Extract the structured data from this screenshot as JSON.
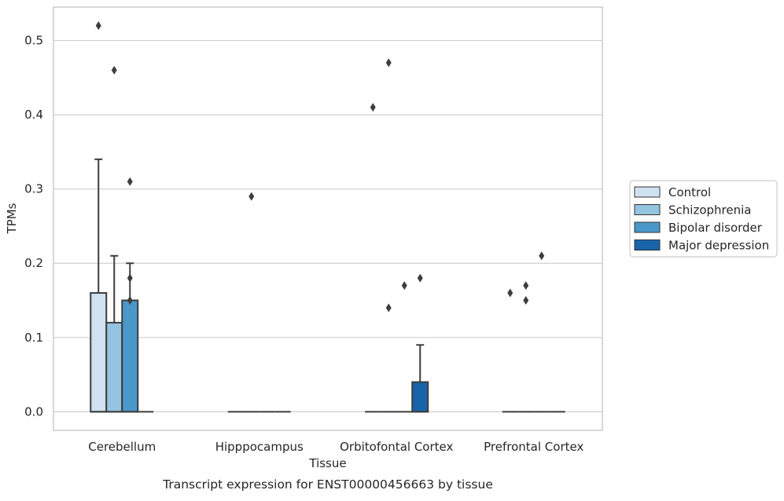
{
  "chart_data": {
    "type": "box",
    "title": "Transcript expression for ENST00000456663 by tissue",
    "xlabel": "Tissue",
    "ylabel": "TPMs",
    "ylim": [
      -0.025,
      0.545
    ],
    "yticks": [
      0.0,
      0.1,
      0.2,
      0.3,
      0.4,
      0.5
    ],
    "ytick_labels": [
      "0.0",
      "0.1",
      "0.2",
      "0.3",
      "0.4",
      "0.5"
    ],
    "grid": "horizontal",
    "legend_position": "right",
    "categories": [
      "Cerebellum",
      "Hipppocampus",
      "Orbitofontal Cortex",
      "Prefrontal Cortex"
    ],
    "series": [
      {
        "name": "Control",
        "color": "#d0e1f1",
        "boxes": [
          {
            "category": "Cerebellum",
            "q1": 0.0,
            "median": 0.0,
            "q3": 0.16,
            "whisker_low": 0.0,
            "whisker_high": 0.34,
            "outliers": [
              0.52
            ]
          },
          {
            "category": "Hipppocampus",
            "q1": 0.0,
            "median": 0.0,
            "q3": 0.0,
            "whisker_low": 0.0,
            "whisker_high": 0.0,
            "outliers": []
          },
          {
            "category": "Orbitofontal Cortex",
            "q1": 0.0,
            "median": 0.0,
            "q3": 0.0,
            "whisker_low": 0.0,
            "whisker_high": 0.0,
            "outliers": [
              0.41
            ]
          },
          {
            "category": "Prefrontal Cortex",
            "q1": 0.0,
            "median": 0.0,
            "q3": 0.0,
            "whisker_low": 0.0,
            "whisker_high": 0.0,
            "outliers": [
              0.16
            ]
          }
        ]
      },
      {
        "name": "Schizophrenia",
        "color": "#94c4df",
        "boxes": [
          {
            "category": "Cerebellum",
            "q1": 0.0,
            "median": 0.0,
            "q3": 0.12,
            "whisker_low": 0.0,
            "whisker_high": 0.21,
            "outliers": [
              0.46
            ]
          },
          {
            "category": "Hipppocampus",
            "q1": 0.0,
            "median": 0.0,
            "q3": 0.0,
            "whisker_low": 0.0,
            "whisker_high": 0.0,
            "outliers": [
              0.29
            ]
          },
          {
            "category": "Orbitofontal Cortex",
            "q1": 0.0,
            "median": 0.0,
            "q3": 0.0,
            "whisker_low": 0.0,
            "whisker_high": 0.0,
            "outliers": [
              0.47,
              0.14
            ]
          },
          {
            "category": "Prefrontal Cortex",
            "q1": 0.0,
            "median": 0.0,
            "q3": 0.0,
            "whisker_low": 0.0,
            "whisker_high": 0.0,
            "outliers": [
              0.17,
              0.15
            ]
          }
        ]
      },
      {
        "name": "Bipolar disorder",
        "color": "#4a98c9",
        "boxes": [
          {
            "category": "Cerebellum",
            "q1": 0.0,
            "median": 0.0,
            "q3": 0.15,
            "whisker_low": 0.0,
            "whisker_high": 0.2,
            "outliers": [
              0.31,
              0.18,
              0.15
            ]
          },
          {
            "category": "Hipppocampus",
            "q1": 0.0,
            "median": 0.0,
            "q3": 0.0,
            "whisker_low": 0.0,
            "whisker_high": 0.0,
            "outliers": []
          },
          {
            "category": "Orbitofontal Cortex",
            "q1": 0.0,
            "median": 0.0,
            "q3": 0.0,
            "whisker_low": 0.0,
            "whisker_high": 0.0,
            "outliers": [
              0.17
            ]
          },
          {
            "category": "Prefrontal Cortex",
            "q1": 0.0,
            "median": 0.0,
            "q3": 0.0,
            "whisker_low": 0.0,
            "whisker_high": 0.0,
            "outliers": [
              0.21
            ]
          }
        ]
      },
      {
        "name": "Major depression",
        "color": "#1764ab",
        "boxes": [
          {
            "category": "Cerebellum",
            "q1": 0.0,
            "median": 0.0,
            "q3": 0.0,
            "whisker_low": 0.0,
            "whisker_high": 0.0,
            "outliers": []
          },
          {
            "category": "Hipppocampus",
            "q1": 0.0,
            "median": 0.0,
            "q3": 0.0,
            "whisker_low": 0.0,
            "whisker_high": 0.0,
            "outliers": []
          },
          {
            "category": "Orbitofontal Cortex",
            "q1": 0.0,
            "median": 0.0,
            "q3": 0.04,
            "whisker_low": 0.0,
            "whisker_high": 0.09,
            "outliers": [
              0.18
            ]
          },
          {
            "category": "Prefrontal Cortex",
            "q1": 0.0,
            "median": 0.0,
            "q3": 0.0,
            "whisker_low": 0.0,
            "whisker_high": 0.0,
            "outliers": []
          }
        ]
      }
    ]
  }
}
